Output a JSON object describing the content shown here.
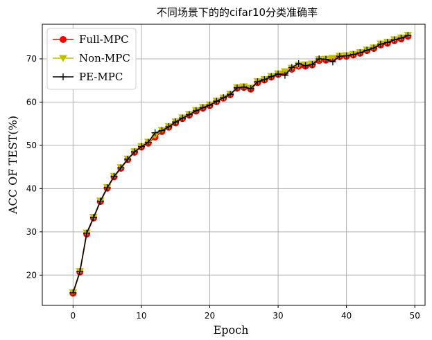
{
  "chart_data": {
    "type": "line",
    "title": "不同场景下的的cifar10分类准确率",
    "xlabel": "Epoch",
    "ylabel": "ACC OF TEST(%)",
    "xlim": [
      -4.5,
      51.5
    ],
    "ylim": [
      13,
      78
    ],
    "xticks": [
      "0",
      "10",
      "20",
      "30",
      "40",
      "50"
    ],
    "yticks": [
      "20",
      "30",
      "40",
      "50",
      "60",
      "70"
    ],
    "grid": true,
    "legend_position": "upper-left",
    "x": [
      0,
      1,
      2,
      3,
      4,
      5,
      6,
      7,
      8,
      9,
      10,
      11,
      12,
      13,
      14,
      15,
      16,
      17,
      18,
      19,
      20,
      21,
      22,
      23,
      24,
      25,
      26,
      27,
      28,
      29,
      30,
      31,
      32,
      33,
      34,
      35,
      36,
      37,
      38,
      39,
      40,
      41,
      42,
      43,
      44,
      45,
      46,
      47,
      48,
      49
    ],
    "series": [
      {
        "name": "Full-MPC",
        "color": "#ff0000",
        "marker": "circle",
        "values": [
          15.8,
          20.7,
          29.5,
          33.2,
          37.0,
          40.1,
          42.7,
          44.7,
          46.7,
          48.4,
          49.6,
          50.5,
          51.9,
          53.2,
          54.2,
          55.2,
          56.2,
          57.0,
          57.9,
          58.6,
          59.2,
          60.1,
          60.9,
          61.7,
          63.2,
          63.4,
          63.0,
          64.5,
          65.1,
          65.8,
          66.4,
          66.8,
          67.6,
          68.3,
          68.3,
          68.6,
          69.6,
          69.7,
          70.0,
          70.5,
          70.6,
          70.9,
          71.3,
          71.9,
          72.4,
          73.2,
          73.6,
          74.2,
          74.6,
          75.2
        ]
      },
      {
        "name": "Non-MPC",
        "color": "#bfbf00",
        "marker": "triangle-down",
        "values": [
          16.0,
          20.9,
          29.8,
          33.4,
          37.2,
          40.3,
          42.9,
          44.9,
          46.9,
          48.6,
          49.8,
          50.8,
          52.3,
          53.5,
          54.4,
          55.5,
          56.4,
          57.2,
          58.1,
          58.8,
          59.4,
          60.3,
          61.0,
          61.9,
          63.4,
          63.6,
          63.3,
          64.8,
          65.3,
          66.0,
          66.6,
          67.1,
          67.9,
          68.6,
          68.7,
          68.9,
          69.9,
          70.0,
          70.2,
          70.7,
          70.8,
          71.1,
          71.5,
          72.1,
          72.6,
          73.5,
          73.9,
          74.5,
          74.9,
          75.5
        ]
      },
      {
        "name": "PE-MPC",
        "color": "#000000",
        "marker": "plus",
        "values": [
          15.9,
          20.8,
          29.7,
          33.3,
          37.1,
          40.2,
          42.8,
          44.8,
          46.8,
          48.5,
          49.7,
          50.7,
          52.9,
          53.4,
          54.3,
          55.4,
          56.3,
          57.1,
          58.0,
          58.7,
          59.3,
          60.2,
          61.0,
          61.8,
          63.3,
          63.5,
          63.1,
          64.7,
          65.2,
          65.9,
          66.5,
          66.2,
          68.0,
          68.9,
          68.4,
          68.7,
          70.0,
          69.9,
          69.3,
          70.6,
          70.7,
          71.0,
          71.4,
          72.0,
          72.5,
          73.4,
          73.8,
          74.4,
          74.8,
          75.4
        ]
      }
    ]
  }
}
